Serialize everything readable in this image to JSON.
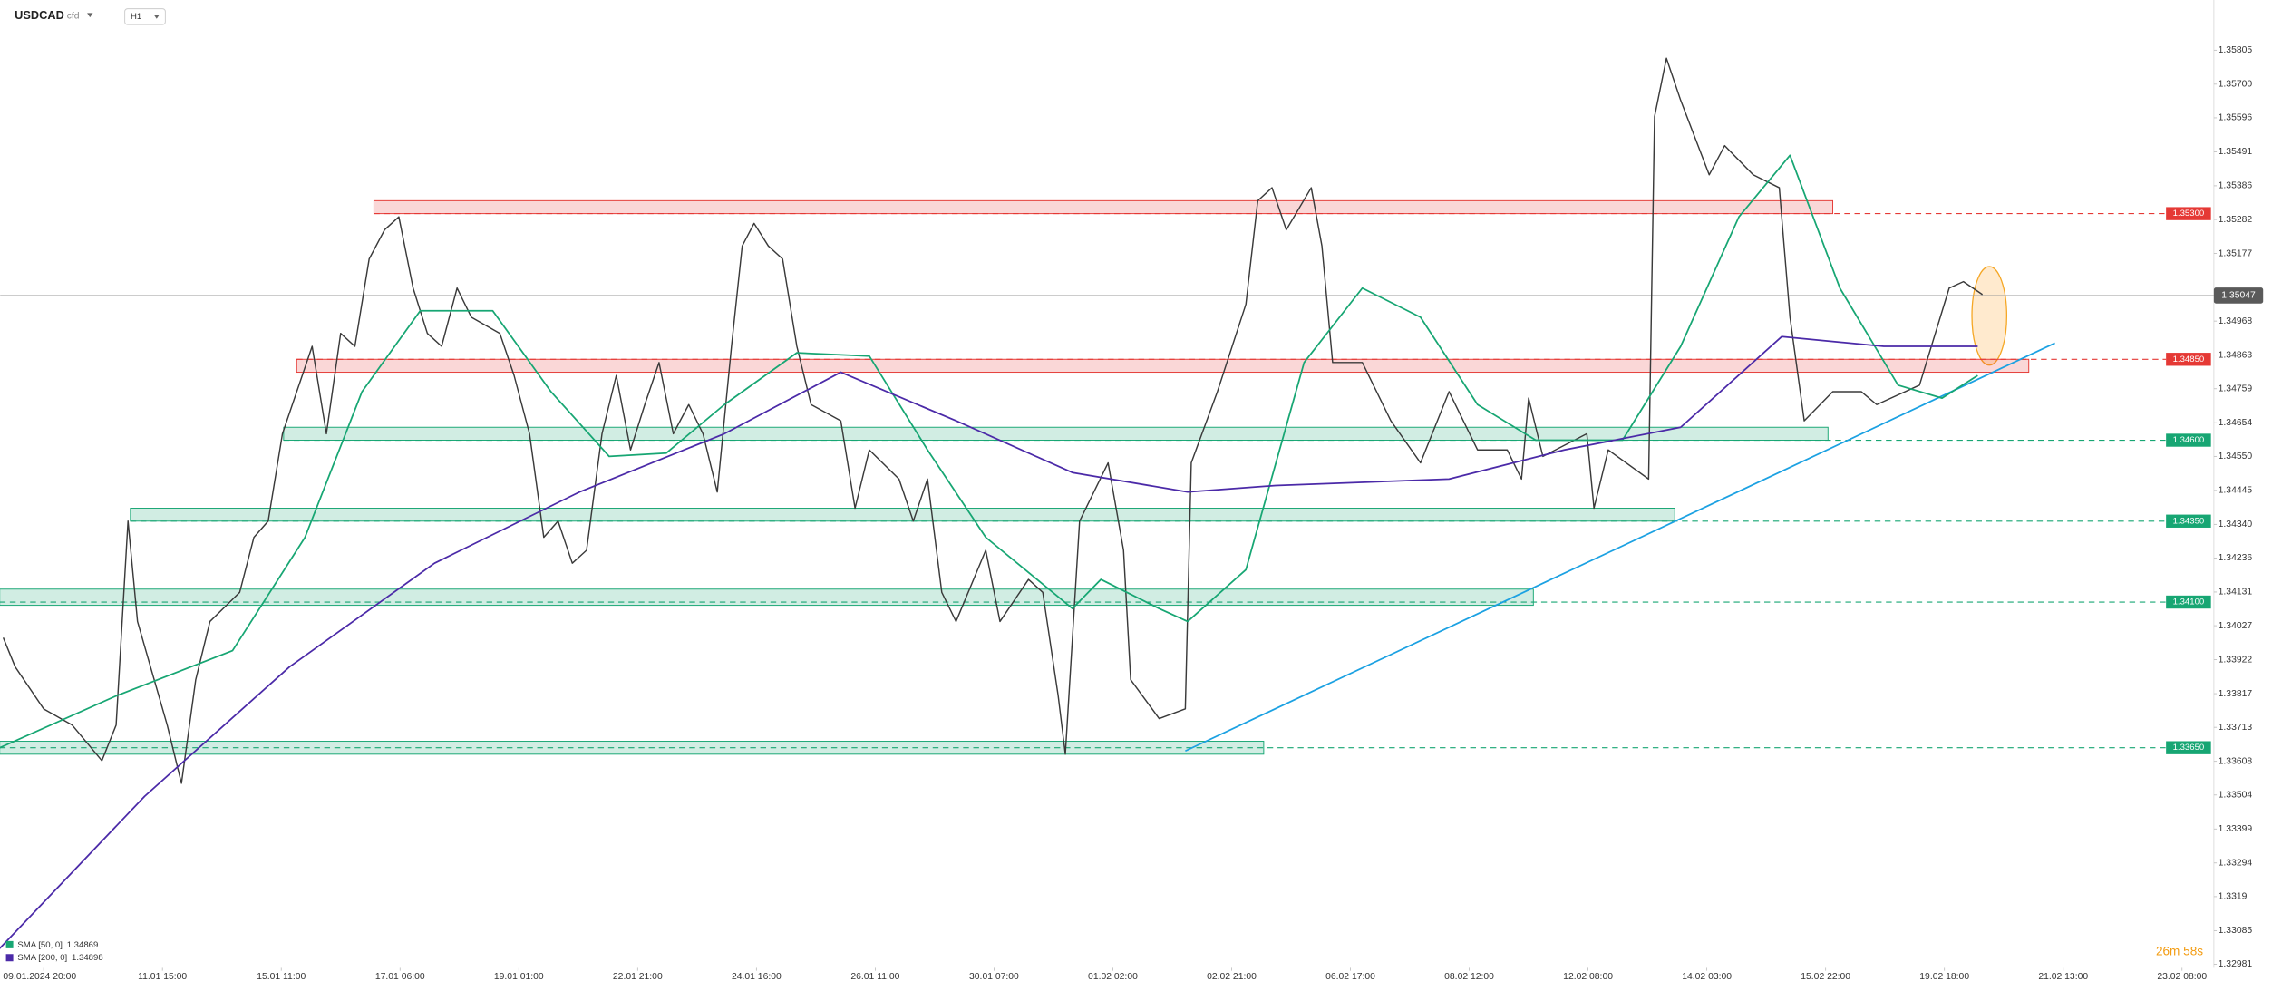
{
  "chart_data": {
    "type": "line",
    "symbol": "USDCAD",
    "instrument_type": "cfd",
    "interval": "H1",
    "timer": "26m 58s",
    "xlim": [
      -0.366,
      18.268
    ],
    "ylim": [
      1.3297,
      1.3596
    ],
    "xticks": [
      {
        "value": 0,
        "label": "09.01.2024 20:00"
      },
      {
        "value": 1,
        "label": "11.01 15:00"
      },
      {
        "value": 2,
        "label": "15.01 11:00"
      },
      {
        "value": 3,
        "label": "17.01 06:00"
      },
      {
        "value": 4,
        "label": "19.01 01:00"
      },
      {
        "value": 5,
        "label": "22.01 21:00"
      },
      {
        "value": 6,
        "label": "24.01 16:00"
      },
      {
        "value": 7,
        "label": "26.01 11:00"
      },
      {
        "value": 8,
        "label": "30.01 07:00"
      },
      {
        "value": 9,
        "label": "01.02 02:00"
      },
      {
        "value": 10,
        "label": "02.02 21:00"
      },
      {
        "value": 11,
        "label": "06.02 17:00"
      },
      {
        "value": 12,
        "label": "08.02 12:00"
      },
      {
        "value": 13,
        "label": "12.02 08:00"
      },
      {
        "value": 14,
        "label": "14.02 03:00"
      },
      {
        "value": 15,
        "label": "15.02 22:00"
      },
      {
        "value": 16,
        "label": "19.02 18:00"
      },
      {
        "value": 17,
        "label": "21.02 13:00"
      },
      {
        "value": 18,
        "label": "23.02 08:00"
      }
    ],
    "yticks": [
      1.35805,
      {
        "value": 1.357,
        "label": "1.35700"
      },
      1.35596,
      1.35491,
      1.35386,
      1.35282,
      1.35177,
      1.34968,
      1.34863,
      1.34759,
      1.34654,
      {
        "value": 1.3455,
        "label": "1.34550"
      },
      1.34445,
      {
        "value": 1.3434,
        "label": "1.34340"
      },
      1.34236,
      1.34131,
      1.34027,
      1.33922,
      1.33817,
      1.33713,
      1.33608,
      1.33504,
      1.33399,
      1.33294,
      1.3319,
      1.33085,
      1.32981
    ],
    "last_price": 1.35047,
    "series": [
      {
        "color": "#3a3a3a",
        "x": [
          -0.34,
          -0.24,
          0,
          0.24,
          0.49,
          0.61,
          0.71,
          0.79,
          1.04,
          1.16,
          1.28,
          1.4,
          1.65,
          1.77,
          1.89,
          2.01,
          2.26,
          2.38,
          2.5,
          2.62,
          2.74,
          2.87,
          2.99,
          3.11,
          3.23,
          3.35,
          3.48,
          3.6,
          3.84,
          3.96,
          4.09,
          4.21,
          4.33,
          4.45,
          4.57,
          4.7,
          4.82,
          4.94,
          5.06,
          5.18,
          5.3,
          5.43,
          5.55,
          5.67,
          5.79,
          5.88,
          5.98,
          6.1,
          6.22,
          6.34,
          6.46,
          6.71,
          6.83,
          6.95,
          7.2,
          7.32,
          7.44,
          7.56,
          7.68,
          7.93,
          8.05,
          8.29,
          8.41,
          8.54,
          8.6,
          8.72,
          8.96,
          9.09,
          9.15,
          9.39,
          9.61,
          9.66,
          9.88,
          10.12,
          10.22,
          10.34,
          10.46,
          10.67,
          10.76,
          10.85,
          11.1,
          11.34,
          11.59,
          11.83,
          12.07,
          12.32,
          12.44,
          12.5,
          12.62,
          12.99,
          13.05,
          13.17,
          13.51,
          13.56,
          13.66,
          13.78,
          14.02,
          14.15,
          14.39,
          14.61,
          14.7,
          14.82,
          15.06,
          15.3,
          15.43,
          15.79,
          16.04,
          16.16,
          16.24,
          16.32
        ],
        "values": [
          1.3399,
          1.339,
          1.3377,
          1.3372,
          1.3361,
          1.3372,
          1.3435,
          1.3404,
          1.3372,
          1.3354,
          1.3386,
          1.3404,
          1.3413,
          1.343,
          1.3435,
          1.3462,
          1.3489,
          1.3462,
          1.3493,
          1.3489,
          1.3516,
          1.3525,
          1.3529,
          1.3507,
          1.3493,
          1.3489,
          1.3507,
          1.3498,
          1.3493,
          1.348,
          1.3462,
          1.343,
          1.3435,
          1.3422,
          1.3426,
          1.3462,
          1.348,
          1.3457,
          1.3471,
          1.3484,
          1.3462,
          1.3471,
          1.3462,
          1.3444,
          1.3489,
          1.352,
          1.3527,
          1.352,
          1.3516,
          1.3489,
          1.3471,
          1.3466,
          1.3439,
          1.3457,
          1.3448,
          1.3435,
          1.3448,
          1.3413,
          1.3404,
          1.3426,
          1.3404,
          1.3417,
          1.3413,
          1.3381,
          1.3363,
          1.3435,
          1.3453,
          1.3426,
          1.3386,
          1.3374,
          1.3377,
          1.3453,
          1.3475,
          1.3502,
          1.3534,
          1.3538,
          1.3525,
          1.3538,
          1.352,
          1.3484,
          1.3484,
          1.3466,
          1.3453,
          1.3475,
          1.3457,
          1.3457,
          1.3448,
          1.3473,
          1.3455,
          1.3462,
          1.3439,
          1.3457,
          1.3448,
          1.356,
          1.3578,
          1.3565,
          1.3542,
          1.3551,
          1.3542,
          1.3538,
          1.3498,
          1.3466,
          1.3475,
          1.3475,
          1.3471,
          1.3477,
          1.3507,
          1.3509,
          1.3507,
          1.3505
        ]
      },
      {
        "name": "SMA [50, 0]",
        "legend_value": 1.34869,
        "color": "#17a673",
        "x": [
          -0.37,
          0.61,
          1.59,
          2.2,
          2.68,
          3.17,
          3.78,
          4.27,
          4.76,
          5.24,
          5.73,
          6.34,
          6.95,
          7.44,
          7.93,
          8.66,
          8.9,
          9.39,
          9.63,
          10.12,
          10.61,
          11.1,
          11.59,
          12.07,
          12.56,
          13.29,
          13.78,
          14.27,
          14.7,
          15.12,
          15.61,
          15.98,
          16.28
        ],
        "values": [
          1.3365,
          1.3381,
          1.3395,
          1.343,
          1.3475,
          1.35,
          1.35,
          1.3475,
          1.3455,
          1.3456,
          1.3471,
          1.3487,
          1.3486,
          1.3457,
          1.343,
          1.3408,
          1.3417,
          1.3408,
          1.3404,
          1.342,
          1.3484,
          1.3507,
          1.3498,
          1.3471,
          1.346,
          1.346,
          1.3489,
          1.3529,
          1.3548,
          1.3507,
          1.3477,
          1.3473,
          1.348
        ]
      },
      {
        "name": "SMA [200, 0]",
        "legend_value": 1.34898,
        "color": "#4b2aa8",
        "x": [
          -0.37,
          0.85,
          2.07,
          3.29,
          4.51,
          5.73,
          6.71,
          7.68,
          8.66,
          9.63,
          10.37,
          11.83,
          12.8,
          13.78,
          14.63,
          15.49,
          16.28
        ],
        "values": [
          1.3303,
          1.335,
          1.339,
          1.3422,
          1.3444,
          1.3462,
          1.3481,
          1.3466,
          1.345,
          1.3444,
          1.3446,
          1.3448,
          1.3457,
          1.3464,
          1.3492,
          1.3489,
          1.3489
        ]
      }
    ],
    "levels": [
      {
        "price": 1.353,
        "label": "1.35300",
        "color": "#e53935",
        "zone": [
          1.353,
          1.3534
        ],
        "zone_x": [
          2.78,
          15.06
        ]
      },
      {
        "price": 1.3485,
        "label": "1.34850",
        "color": "#e53935",
        "zone": [
          1.3481,
          1.3485
        ],
        "zone_x": [
          2.13,
          16.71
        ]
      },
      {
        "price": 1.346,
        "label": "1.34600",
        "color": "#17a673",
        "zone": [
          1.346,
          1.3464
        ],
        "zone_x": [
          2.02,
          15.02
        ]
      },
      {
        "price": 1.3435,
        "label": "1.34350",
        "color": "#17a673",
        "zone": [
          1.3435,
          1.3439
        ],
        "zone_x": [
          0.73,
          13.73
        ]
      },
      {
        "price": 1.341,
        "label": "1.34100",
        "color": "#17a673",
        "zone": [
          1.3409,
          1.3414
        ],
        "zone_x": [
          -0.37,
          12.54
        ]
      },
      {
        "price": 1.3365,
        "label": "1.33650",
        "color": "#17a673",
        "zone": [
          1.3363,
          1.3367
        ],
        "zone_x": [
          -0.37,
          10.27
        ]
      }
    ],
    "trendline": {
      "x": [
        9.61,
        16.93
      ],
      "y": [
        1.3364,
        1.349
      ],
      "color": "#1ba1e2"
    }
  }
}
